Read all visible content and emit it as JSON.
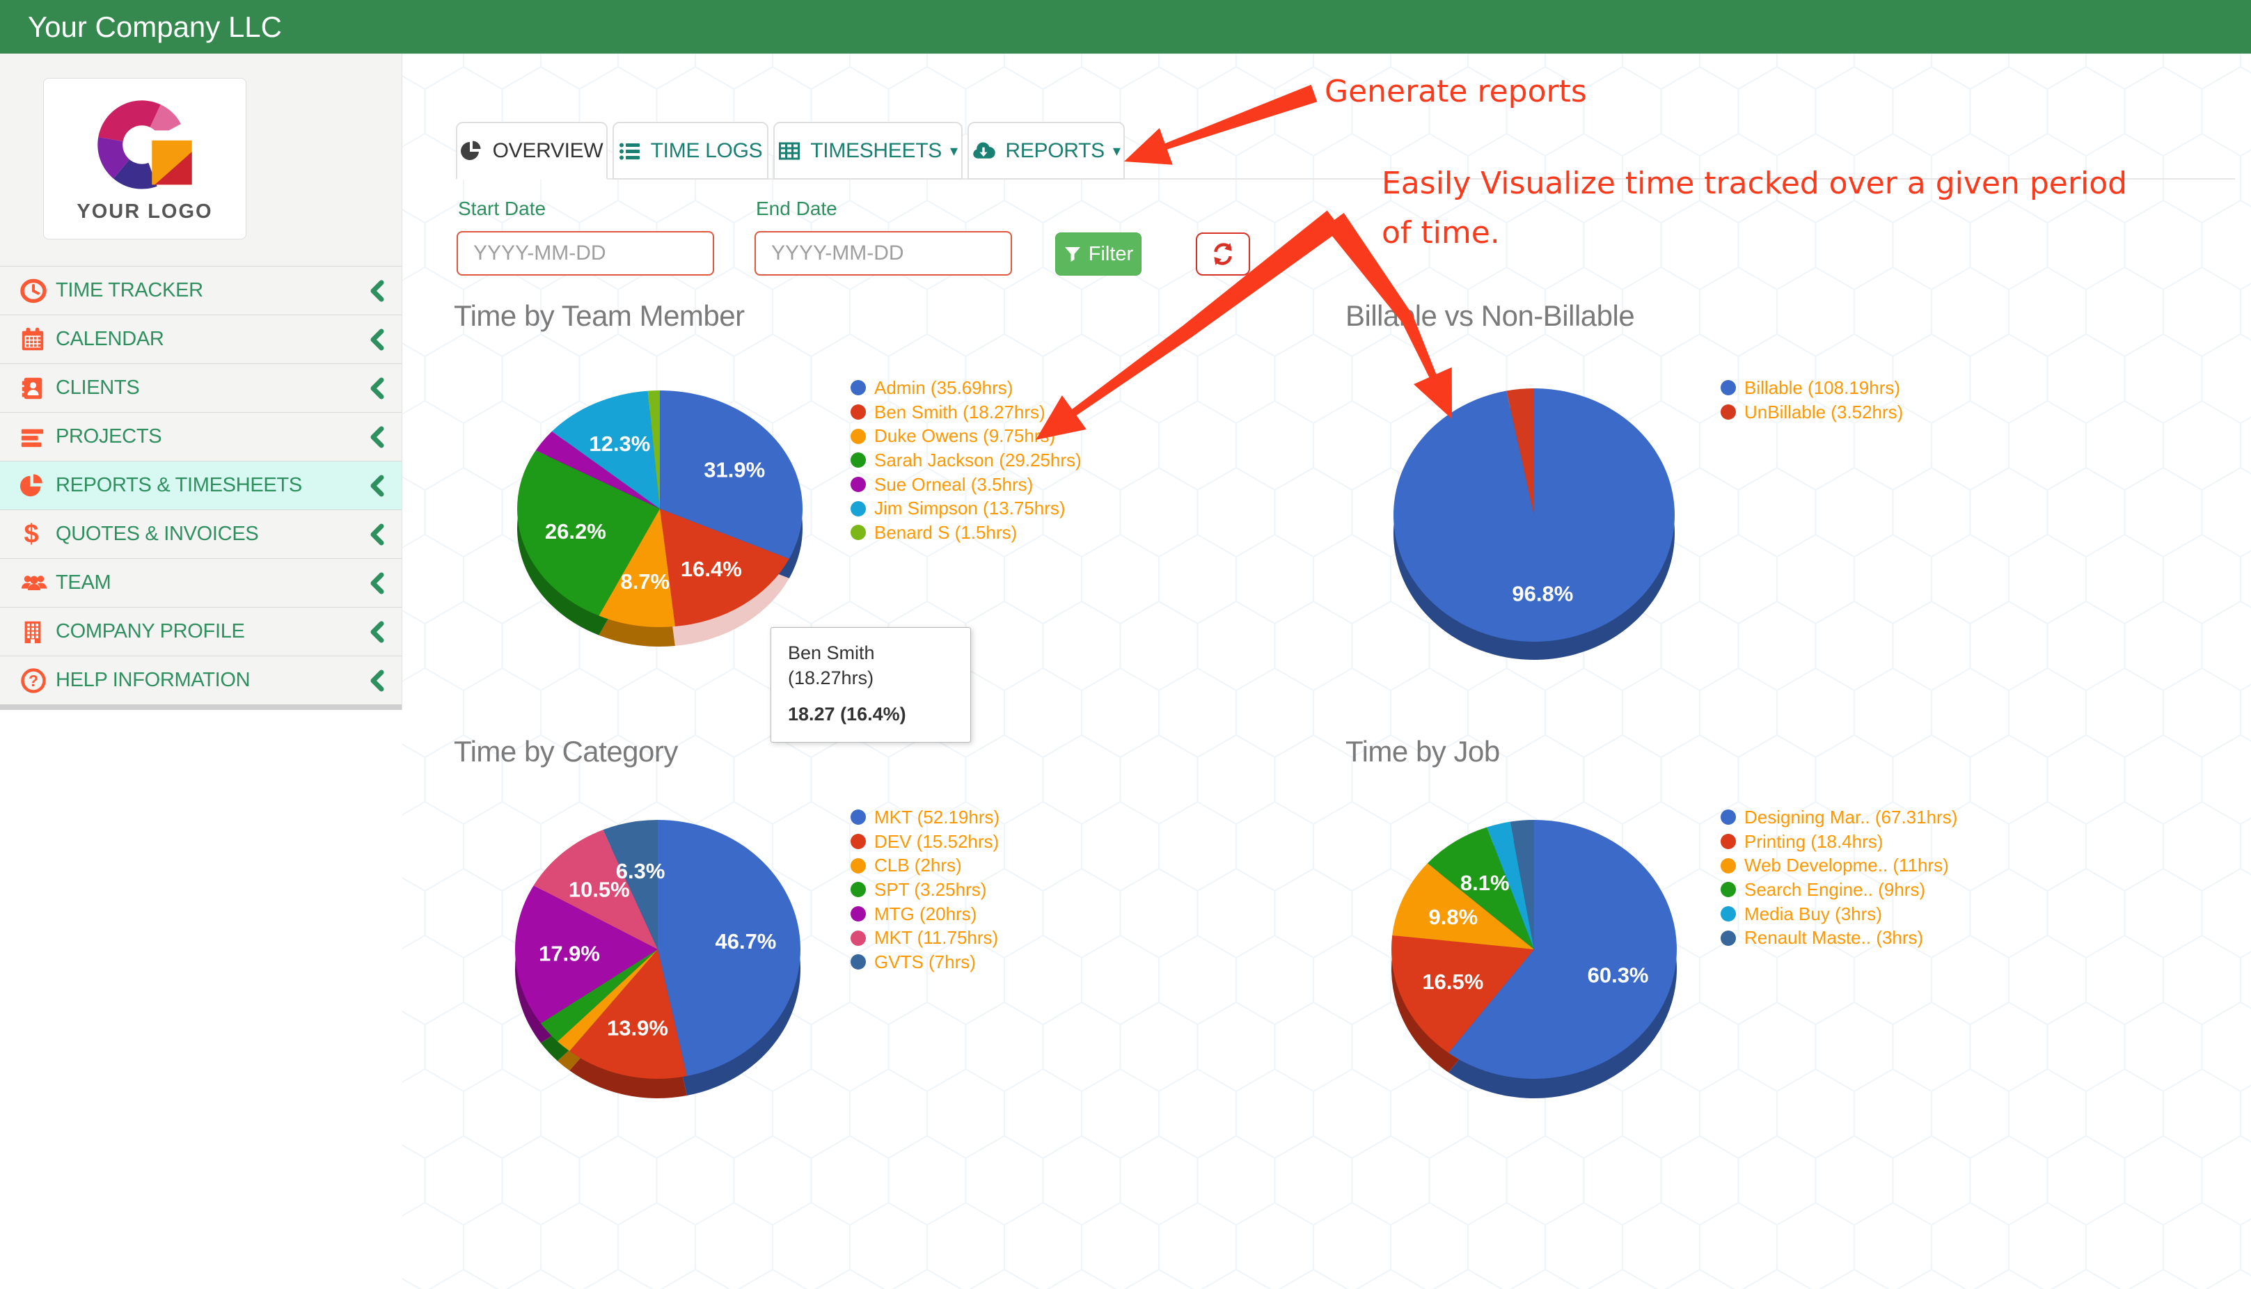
{
  "header": {
    "title": "Your Company LLC"
  },
  "sidebar": {
    "logo_text": "YOUR LOGO",
    "items": [
      {
        "label": "TIME TRACKER",
        "icon": "clock-icon",
        "active": false
      },
      {
        "label": "CALENDAR",
        "icon": "calendar-icon",
        "active": false
      },
      {
        "label": "CLIENTS",
        "icon": "address-book-icon",
        "active": false
      },
      {
        "label": "PROJECTS",
        "icon": "list-bars-icon",
        "active": false
      },
      {
        "label": "REPORTS & TIMESHEETS",
        "icon": "pie-chart-icon",
        "active": true
      },
      {
        "label": "QUOTES & INVOICES",
        "icon": "dollar-icon",
        "active": false
      },
      {
        "label": "TEAM",
        "icon": "team-icon",
        "active": false
      },
      {
        "label": "COMPANY PROFILE",
        "icon": "building-icon",
        "active": false
      },
      {
        "label": "HELP INFORMATION",
        "icon": "help-circle-icon",
        "active": false
      }
    ]
  },
  "tabs": [
    {
      "label": "OVERVIEW",
      "icon": "pie-chart-dark-icon",
      "active": true,
      "caret": false
    },
    {
      "label": "TIME LOGS",
      "icon": "list-icon",
      "active": false,
      "caret": false
    },
    {
      "label": "TIMESHEETS",
      "icon": "table-icon",
      "active": false,
      "caret": true
    },
    {
      "label": "REPORTS",
      "icon": "cloud-download-icon",
      "active": false,
      "caret": true
    }
  ],
  "filters": {
    "start_date_label": "Start Date",
    "end_date_label": "End Date",
    "date_placeholder": "YYYY-MM-DD",
    "filter_button": "Filter"
  },
  "annotations": {
    "generate_reports": "Generate reports",
    "visualize_line1": "Easily Visualize time tracked over a given period",
    "visualize_line2": "of time."
  },
  "tooltip": {
    "line1": "Ben Smith",
    "line2": "(18.27hrs)",
    "value": "18.27 (16.4%)"
  },
  "colors": {
    "header_green": "#35894F",
    "menu_text_green": "#2E8F5F",
    "icon_orange": "#FB5A35",
    "active_item_bg": "#D8F8F2",
    "tab_teal": "#1A8071",
    "tab_active_dark": "#3F3F3F",
    "legend_text_orange": "#FD9803",
    "annotation_red": "#F93A1C",
    "input_border_red": "#E0573E",
    "filter_button_green": "#5CB85C",
    "refresh_red": "#D93025",
    "title_gray": "#7A7A7A"
  },
  "chart_data": [
    {
      "type": "pie",
      "is3d": true,
      "title": "Time by Team Member",
      "unit": "hrs",
      "legend_position": "right",
      "slices": [
        {
          "label": "Admin",
          "hours": 35.69,
          "legend": "Admin (35.69hrs)",
          "pct_label": "31.9%",
          "color": "#3C6AC8",
          "highlight": false
        },
        {
          "label": "Ben Smith",
          "hours": 18.27,
          "legend": "Ben Smith (18.27hrs)",
          "pct_label": "16.4%",
          "color": "#DB3A1B",
          "highlight": true
        },
        {
          "label": "Duke Owens",
          "hours": 9.75,
          "legend": "Duke Owens (9.75hrs)",
          "pct_label": "8.7%",
          "color": "#F89A04",
          "highlight": false
        },
        {
          "label": "Sarah Jackson",
          "hours": 29.25,
          "legend": "Sarah Jackson (29.25hrs)",
          "pct_label": "26.2%",
          "color": "#1E9A18",
          "highlight": false
        },
        {
          "label": "Sue Orneal",
          "hours": 3.5,
          "legend": "Sue Orneal (3.5hrs)",
          "pct_label": null,
          "color": "#A20BA5",
          "highlight": false
        },
        {
          "label": "Jim Simpson",
          "hours": 13.75,
          "legend": "Jim Simpson (13.75hrs)",
          "pct_label": "12.3%",
          "color": "#17A3D5",
          "highlight": false
        },
        {
          "label": "Benard S",
          "hours": 1.5,
          "legend": "Benard S (1.5hrs)",
          "pct_label": null,
          "color": "#7CB718",
          "highlight": false
        }
      ]
    },
    {
      "type": "pie",
      "is3d": true,
      "title": "Billable vs Non-Billable",
      "unit": "hrs",
      "legend_position": "right",
      "slices": [
        {
          "label": "Billable",
          "hours": 108.19,
          "legend": "Billable (108.19hrs)",
          "pct_label": "96.8%",
          "color": "#3C6AC8",
          "highlight": false
        },
        {
          "label": "UnBillable",
          "hours": 3.52,
          "legend": "UnBillable (3.52hrs)",
          "pct_label": null,
          "color": "#D33A1E",
          "highlight": false
        }
      ]
    },
    {
      "type": "pie",
      "is3d": true,
      "title": "Time by Category",
      "unit": "hrs",
      "legend_position": "right",
      "slices": [
        {
          "label": "MKT",
          "hours": 52.19,
          "legend": "MKT (52.19hrs)",
          "pct_label": "46.7%",
          "color": "#3C6AC8",
          "highlight": false
        },
        {
          "label": "DEV",
          "hours": 15.52,
          "legend": "DEV (15.52hrs)",
          "pct_label": "13.9%",
          "color": "#DB3A1B",
          "highlight": false
        },
        {
          "label": "CLB",
          "hours": 2,
          "legend": "CLB (2hrs)",
          "pct_label": null,
          "color": "#F89A04",
          "highlight": false
        },
        {
          "label": "SPT",
          "hours": 3.25,
          "legend": "SPT (3.25hrs)",
          "pct_label": null,
          "color": "#1E9A18",
          "highlight": false
        },
        {
          "label": "MTG",
          "hours": 20,
          "legend": "MTG (20hrs)",
          "pct_label": "17.9%",
          "color": "#A20BA5",
          "highlight": false
        },
        {
          "label": "MKT",
          "hours": 11.75,
          "legend": "MKT (11.75hrs)",
          "pct_label": "10.5%",
          "color": "#DC4B76",
          "highlight": false
        },
        {
          "label": "GVTS",
          "hours": 7,
          "legend": "GVTS (7hrs)",
          "pct_label": "6.3%",
          "color": "#38689B",
          "highlight": false
        }
      ]
    },
    {
      "type": "pie",
      "is3d": true,
      "title": "Time by Job",
      "unit": "hrs",
      "legend_position": "right",
      "slices": [
        {
          "label": "Designing Mar..",
          "hours": 67.31,
          "legend": "Designing Mar.. (67.31hrs)",
          "pct_label": "60.3%",
          "color": "#3C6AC8",
          "highlight": false
        },
        {
          "label": "Printing",
          "hours": 18.4,
          "legend": "Printing (18.4hrs)",
          "pct_label": "16.5%",
          "color": "#DB3A1B",
          "highlight": false
        },
        {
          "label": "Web Developme..",
          "hours": 11,
          "legend": "Web Developme.. (11hrs)",
          "pct_label": "9.8%",
          "color": "#F89A04",
          "highlight": false
        },
        {
          "label": "Search Engine..",
          "hours": 9,
          "legend": "Search Engine.. (9hrs)",
          "pct_label": "8.1%",
          "color": "#1E9A18",
          "highlight": false
        },
        {
          "label": "Media Buy",
          "hours": 3,
          "legend": "Media Buy (3hrs)",
          "pct_label": null,
          "color": "#17A3D5",
          "highlight": false
        },
        {
          "label": "Renault Maste..",
          "hours": 3,
          "legend": "Renault Maste.. (3hrs)",
          "pct_label": null,
          "color": "#38689B",
          "highlight": false
        }
      ]
    }
  ]
}
